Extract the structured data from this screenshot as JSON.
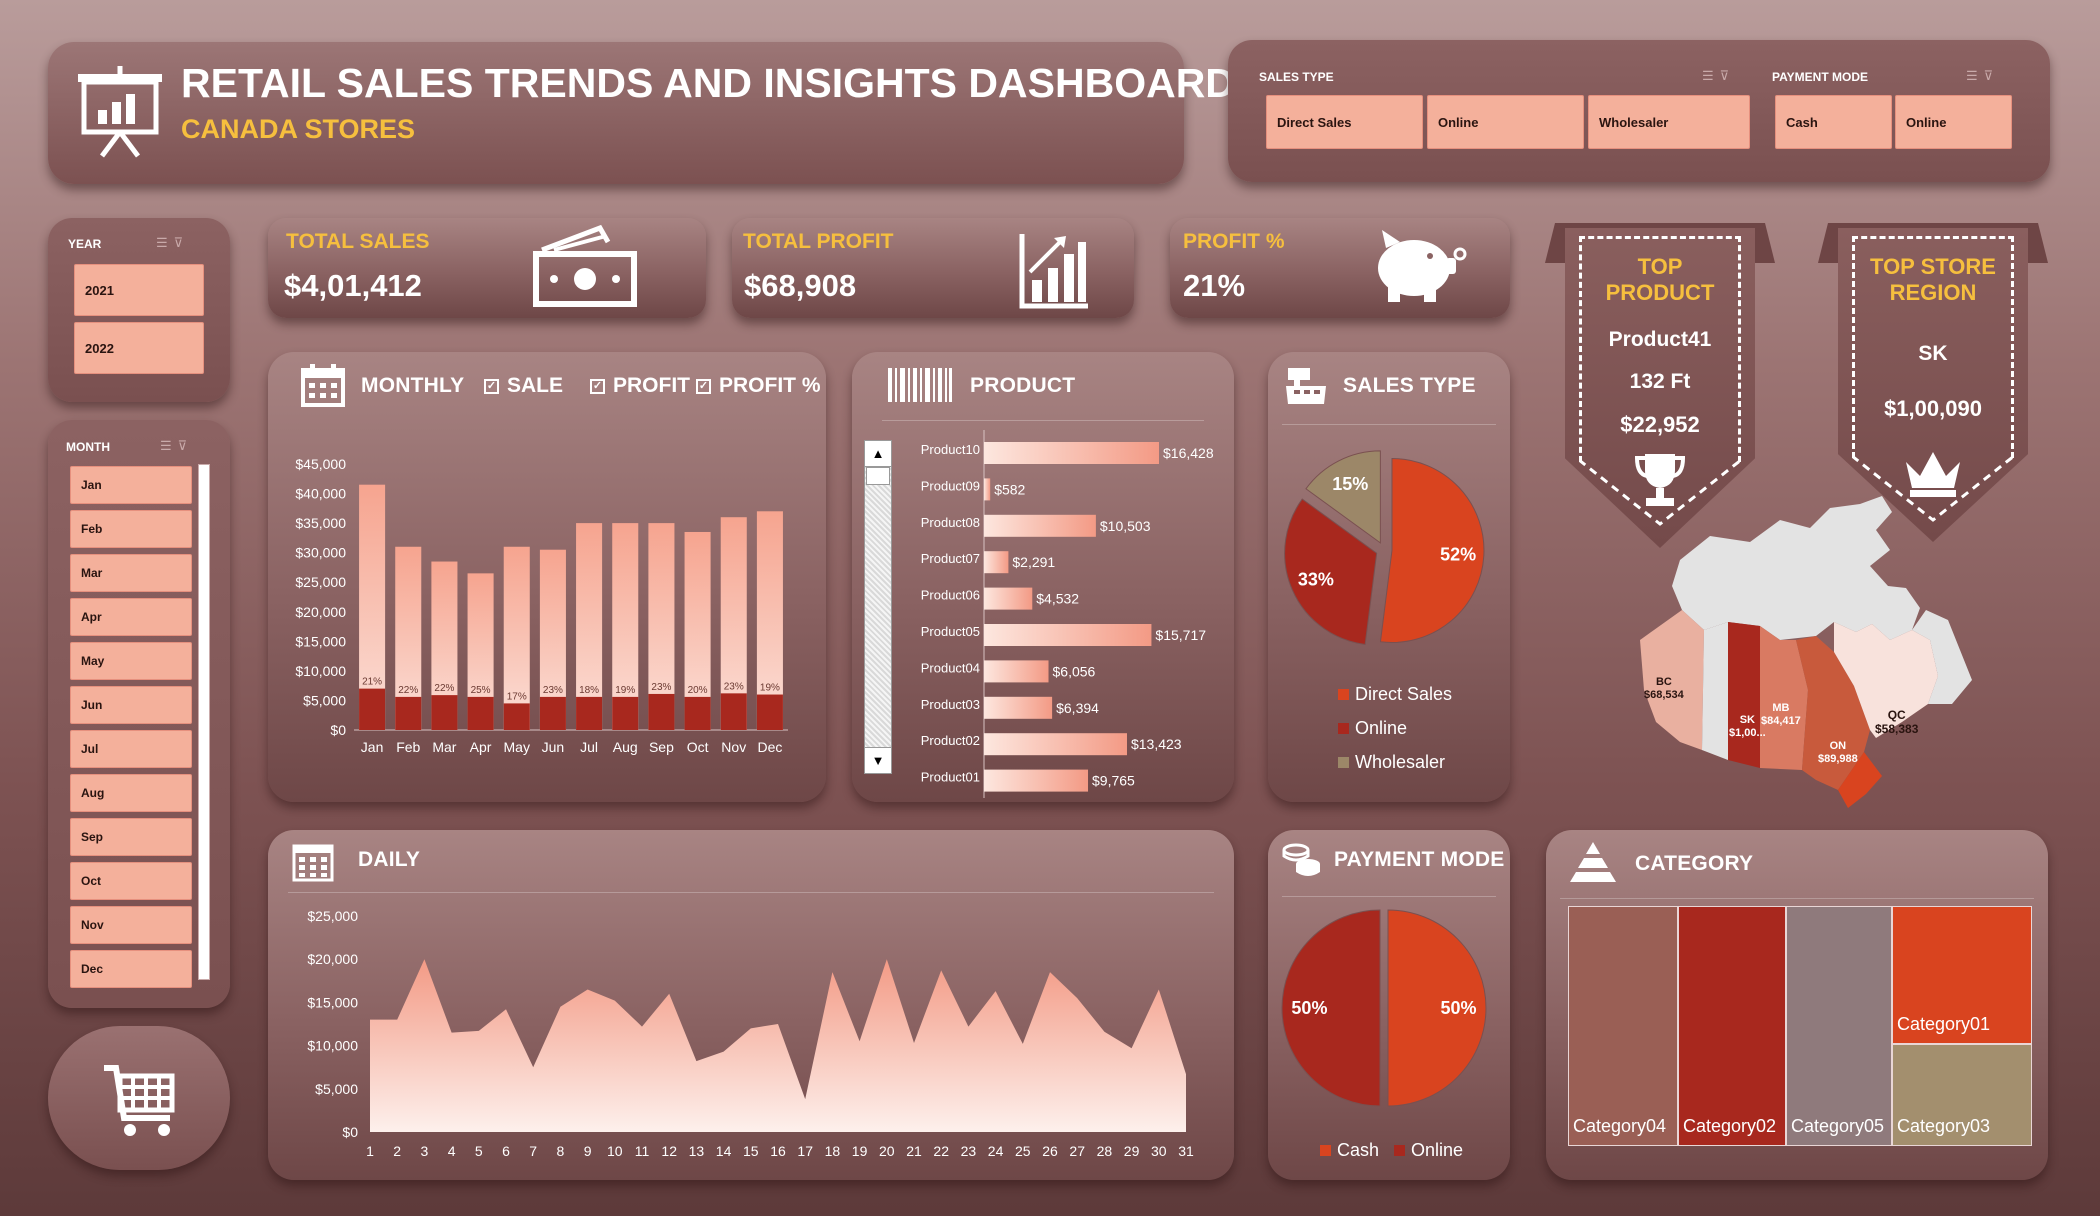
{
  "header": {
    "title": "RETAIL SALES TRENDS AND INSIGHTS DASHBOARD",
    "subtitle": "CANADA STORES"
  },
  "slicers": {
    "sales_type": {
      "title": "SALES TYPE",
      "options": [
        "Direct Sales",
        "Online",
        "Wholesaler"
      ]
    },
    "payment_mode": {
      "title": "PAYMENT MODE",
      "options": [
        "Cash",
        "Online"
      ]
    },
    "year": {
      "title": "YEAR",
      "options": [
        "2021",
        "2022"
      ]
    },
    "month": {
      "title": "MONTH",
      "options": [
        "Jan",
        "Feb",
        "Mar",
        "Apr",
        "May",
        "Jun",
        "Jul",
        "Aug",
        "Sep",
        "Oct",
        "Nov",
        "Dec"
      ]
    }
  },
  "kpis": {
    "total_sales": {
      "label": "TOTAL SALES",
      "value": "$4,01,412"
    },
    "total_profit": {
      "label": "TOTAL PROFIT",
      "value": "$68,908"
    },
    "profit_pct": {
      "label": "PROFIT %",
      "value": "21%"
    }
  },
  "top_product": {
    "line1": "TOP",
    "line2": "PRODUCT",
    "name": "Product41",
    "qty": "132 Ft",
    "value": "$22,952"
  },
  "top_region": {
    "line1": "TOP STORE",
    "line2": "REGION",
    "name": "SK",
    "value": "$1,00,090"
  },
  "panels": {
    "monthly": {
      "title": "MONTHLY",
      "toggle_sale": "SALE",
      "toggle_profit": "PROFIT",
      "toggle_profit_pct": "PROFIT %"
    },
    "product": {
      "title": "PRODUCT"
    },
    "sales_type": {
      "title": "SALES TYPE"
    },
    "daily": {
      "title": "DAILY"
    },
    "payment_mode": {
      "title": "PAYMENT MODE"
    },
    "category": {
      "title": "CATEGORY"
    }
  },
  "colors": {
    "accent_gold": "#f6bf3e",
    "salmon": "#f4b09b",
    "profit_red": "#a8281e",
    "orange": "#d9441f",
    "wholesaler": "#9c8768"
  },
  "chart_data": [
    {
      "id": "monthly",
      "type": "bar",
      "categories": [
        "Jan",
        "Feb",
        "Mar",
        "Apr",
        "May",
        "Jun",
        "Jul",
        "Aug",
        "Sep",
        "Oct",
        "Nov",
        "Dec"
      ],
      "series": [
        {
          "name": "SALE",
          "values": [
            41500,
            31000,
            28500,
            26500,
            31000,
            30500,
            35000,
            35000,
            35000,
            33500,
            36000,
            37000
          ]
        },
        {
          "name": "PROFIT",
          "values": [
            7000,
            5600,
            5900,
            5600,
            4500,
            5600,
            5600,
            5600,
            6100,
            5600,
            6200,
            6000
          ]
        }
      ],
      "data_labels": [
        "21%",
        "22%",
        "22%",
        "25%",
        "17%",
        "23%",
        "18%",
        "19%",
        "23%",
        "20%",
        "23%",
        "19%"
      ],
      "yticks": [
        "$0",
        "$5,000",
        "$10,000",
        "$15,000",
        "$20,000",
        "$25,000",
        "$30,000",
        "$35,000",
        "$40,000",
        "$45,000"
      ],
      "ylim": [
        0,
        45000
      ]
    },
    {
      "id": "product",
      "type": "bar",
      "orientation": "horizontal",
      "categories": [
        "Product10",
        "Product09",
        "Product08",
        "Product07",
        "Product06",
        "Product05",
        "Product04",
        "Product03",
        "Product02",
        "Product01"
      ],
      "values": [
        16428,
        582,
        10503,
        2291,
        4532,
        15717,
        6056,
        6394,
        13423,
        9765
      ],
      "labels": [
        "$16,428",
        "$582",
        "$10,503",
        "$2,291",
        "$4,532",
        "$15,717",
        "$6,056",
        "$6,394",
        "$13,423",
        "$9,765"
      ]
    },
    {
      "id": "sales_type",
      "type": "pie",
      "categories": [
        "Direct Sales",
        "Online",
        "Wholesaler"
      ],
      "values": [
        52,
        33,
        15
      ],
      "labels": [
        "52%",
        "33%",
        "15%"
      ],
      "colors": [
        "#d9441f",
        "#a8281e",
        "#9c8768"
      ]
    },
    {
      "id": "daily",
      "type": "area",
      "x": [
        1,
        2,
        3,
        4,
        5,
        6,
        7,
        8,
        9,
        10,
        11,
        12,
        13,
        14,
        15,
        16,
        17,
        18,
        19,
        20,
        21,
        22,
        23,
        24,
        25,
        26,
        27,
        28,
        29,
        30,
        31
      ],
      "values": [
        13000,
        13000,
        20000,
        11500,
        11700,
        14200,
        7500,
        14500,
        16500,
        15200,
        12200,
        16000,
        8200,
        9300,
        12000,
        12500,
        3800,
        18500,
        10500,
        20000,
        10300,
        18700,
        12200,
        16300,
        10200,
        18500,
        15500,
        11600,
        9700,
        16500,
        6700
      ],
      "yticks": [
        "$0",
        "$5,000",
        "$10,000",
        "$15,000",
        "$20,000",
        "$25,000"
      ],
      "ylim": [
        0,
        25000
      ]
    },
    {
      "id": "payment_mode",
      "type": "pie",
      "categories": [
        "Cash",
        "Online"
      ],
      "values": [
        50,
        50
      ],
      "labels": [
        "50%",
        "50%"
      ],
      "colors": [
        "#d9441f",
        "#a8281e"
      ]
    },
    {
      "id": "category",
      "type": "treemap",
      "categories": [
        "Category04",
        "Category02",
        "Category05",
        "Category01",
        "Category03"
      ],
      "colors": [
        "#9a5f55",
        "#a8281e",
        "#8f7a7c",
        "#d9441f",
        "#a38f6e"
      ]
    },
    {
      "id": "region_map",
      "type": "map",
      "regions": [
        {
          "code": "BC",
          "value": "$68,534"
        },
        {
          "code": "SK",
          "value": "$1,00..."
        },
        {
          "code": "MB",
          "value": "$84,417"
        },
        {
          "code": "ON",
          "value": "$89,988"
        },
        {
          "code": "QC",
          "value": "$58,383"
        }
      ]
    }
  ]
}
